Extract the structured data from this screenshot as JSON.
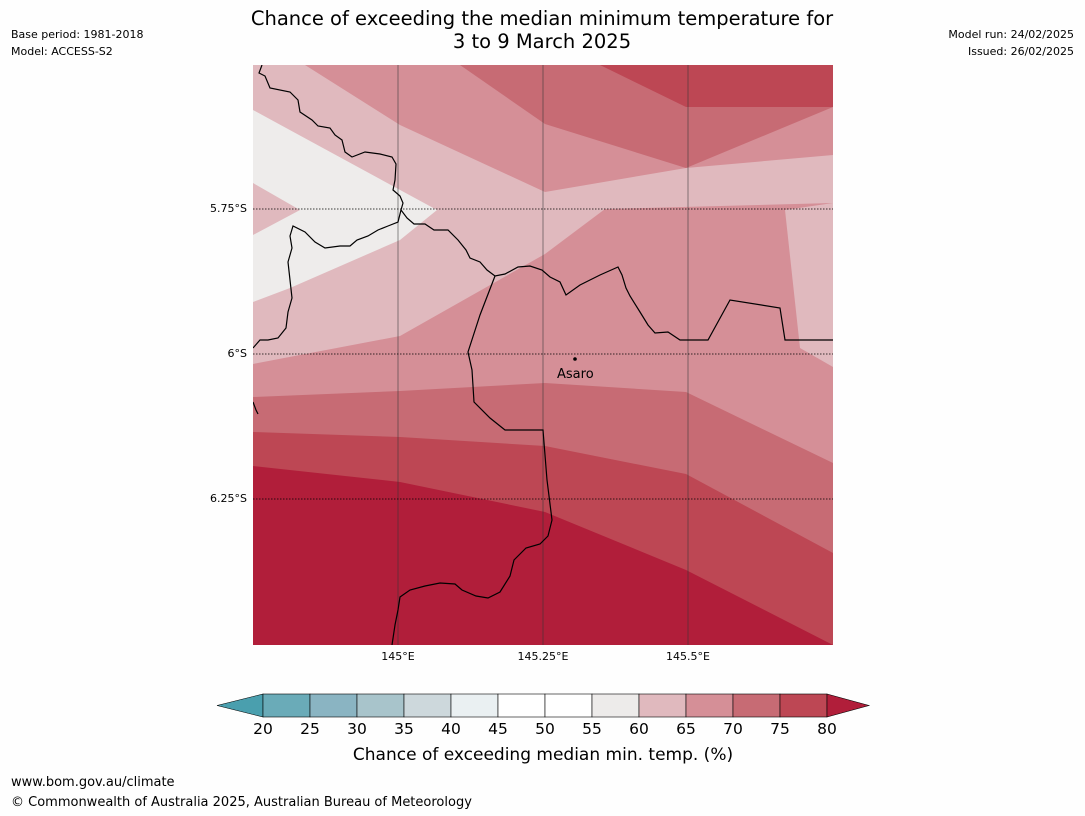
{
  "title_line1": "Chance of exceeding the median minimum temperature for",
  "title_line2": "3 to 9 March 2025",
  "meta_left": {
    "base_period": "Base period: 1981-2018",
    "model": "Model: ACCESS-S2"
  },
  "meta_right": {
    "model_run": "Model run: 24/02/2025",
    "issued": "Issued: 26/02/2025"
  },
  "map": {
    "lat_labels": [
      "5.75°S",
      "6°S",
      "6.25°S"
    ],
    "lon_labels": [
      "145°E",
      "145.25°E",
      "145.5°E"
    ],
    "place": {
      "name": "Asaro",
      "lat": -6.01,
      "lon": 145.3
    },
    "fill_colors": {
      "55-60": "#eeeceb",
      "60-65": "#e0b9be",
      "65-70": "#d58f97",
      "70-75": "#c76b74",
      "75-80": "#bd4754",
      "80+": "#b11e3a"
    }
  },
  "colorbar": {
    "ticks": [
      "20",
      "25",
      "30",
      "35",
      "40",
      "45",
      "50",
      "55",
      "60",
      "65",
      "70",
      "75",
      "80"
    ],
    "colors": [
      "#6aabb8",
      "#8ab4c2",
      "#a8c4cb",
      "#cdd8dc",
      "#eaf0f2",
      "#ffffff",
      "#ffffff",
      "#edebea",
      "#e0b9be",
      "#d58f97",
      "#c76b74",
      "#bd4754"
    ],
    "under_color": "#4a9fae",
    "over_color": "#b11e3a",
    "label": "Chance of exceeding median min. temp. (%)"
  },
  "footer": {
    "url": "www.bom.gov.au/climate",
    "copyright": "© Commonwealth of Australia 2025, Australian Bureau of Meteorology"
  }
}
